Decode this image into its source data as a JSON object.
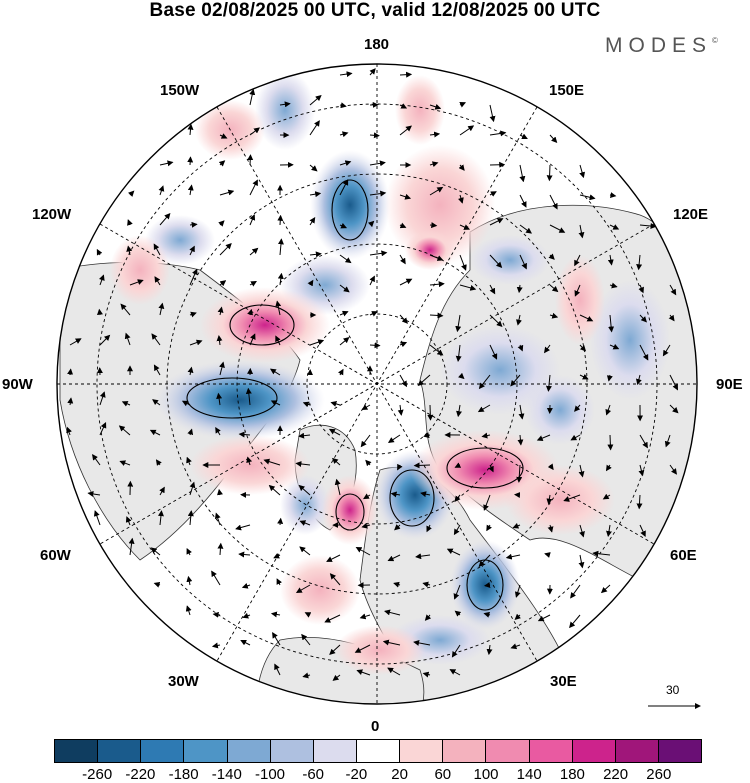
{
  "title": "Base 02/08/2025 00 UTC, valid 12/08/2025 00 UTC",
  "brand": {
    "name": "MODES",
    "mark": "©"
  },
  "map": {
    "projection": "north-polar-stereographic",
    "longitude_labels": {
      "top": "180",
      "bottom": "0",
      "left": "90W",
      "right": "90E",
      "top_left": "150W",
      "top_right": "150E",
      "upper_left": "120W",
      "upper_right": "120E",
      "lower_left": "60W",
      "lower_right": "60E",
      "bottom_left": "30W",
      "bottom_right": "30E"
    },
    "land_color": "#e8e8e8",
    "ocean_color": "#ffffff"
  },
  "reference_vector": {
    "value": "30"
  },
  "colorbar": {
    "colors": [
      "#0f3d60",
      "#1a5b8c",
      "#2e7ab3",
      "#4e95c6",
      "#7ea9d3",
      "#aec0e0",
      "#dcdcee",
      "#ffffff",
      "#fad6d6",
      "#f4b2be",
      "#f08bb0",
      "#e95aa1",
      "#cd238c",
      "#a0167a",
      "#6a0f75"
    ],
    "labels": [
      "-260",
      "-220",
      "-180",
      "-140",
      "-100",
      "-60",
      "-20",
      "20",
      "60",
      "100",
      "140",
      "180",
      "220",
      "260"
    ]
  }
}
